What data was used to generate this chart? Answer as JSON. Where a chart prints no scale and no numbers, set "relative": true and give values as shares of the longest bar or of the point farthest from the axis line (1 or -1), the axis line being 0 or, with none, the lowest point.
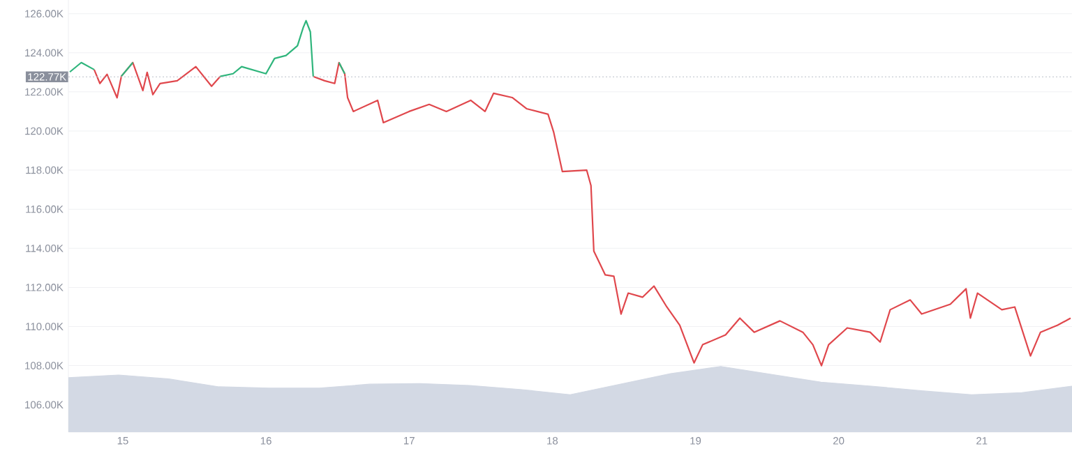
{
  "chart_data": [
    {
      "type": "line",
      "x": [
        14.63,
        14.71,
        14.8,
        14.84,
        14.89,
        14.96,
        14.99,
        15.07,
        15.14,
        15.17,
        15.21,
        15.26,
        15.38,
        15.51,
        15.62,
        15.68,
        15.77,
        15.83,
        16.0,
        16.06,
        16.14,
        16.22,
        16.26,
        16.28,
        16.31,
        16.33,
        16.41,
        16.48,
        16.51,
        16.55,
        16.57,
        16.61,
        16.78,
        16.82,
        17.0,
        17.14,
        17.26,
        17.43,
        17.53,
        17.59,
        17.72,
        17.82,
        17.97,
        18.01,
        18.07,
        18.24,
        18.27,
        18.29,
        18.37,
        18.43,
        18.48,
        18.53,
        18.63,
        18.71,
        18.8,
        18.89,
        18.99,
        19.05,
        19.21,
        19.31,
        19.41,
        19.59,
        19.75,
        19.82,
        19.88,
        19.93,
        20.06,
        20.22,
        20.29,
        20.36,
        20.5,
        20.58,
        20.78,
        20.89,
        20.92,
        20.97,
        21.14,
        21.23,
        21.34,
        21.41,
        21.53,
        21.62
      ],
      "series": [
        {
          "color": "#e0474c",
          "values": [
            null,
            null,
            123.14,
            122.43,
            122.9,
            121.7,
            122.8,
            123.5,
            122.07,
            123.0,
            121.86,
            122.43,
            122.57,
            123.29,
            122.29,
            122.79,
            null,
            null,
            null,
            null,
            null,
            null,
            null,
            null,
            null,
            122.79,
            122.57,
            122.43,
            123.5,
            122.93,
            121.71,
            121.0,
            121.57,
            120.43,
            121.0,
            121.36,
            121.0,
            121.57,
            121.0,
            121.93,
            121.71,
            121.14,
            120.86,
            119.93,
            117.93,
            118.0,
            117.21,
            113.86,
            112.64,
            112.57,
            110.64,
            111.71,
            111.5,
            112.07,
            111.0,
            110.07,
            108.14,
            109.07,
            109.57,
            110.43,
            109.71,
            110.29,
            109.71,
            109.07,
            108.0,
            109.07,
            109.93,
            109.71,
            109.21,
            110.86,
            111.36,
            110.64,
            111.14,
            111.93,
            110.43,
            111.71,
            110.86,
            111.0,
            108.5,
            109.71,
            110.07,
            110.43
          ]
        },
        {
          "color": "#2fb57c",
          "values": [
            123.02,
            123.5,
            123.14,
            null,
            null,
            null,
            122.8,
            123.5,
            null,
            null,
            null,
            null,
            null,
            null,
            null,
            122.79,
            122.93,
            123.29,
            122.93,
            123.71,
            123.86,
            124.36,
            125.29,
            125.64,
            125.07,
            122.79,
            null,
            null,
            123.5,
            122.93,
            null,
            null,
            null,
            null,
            null,
            null,
            null,
            null,
            null,
            null,
            null,
            null,
            null,
            null,
            null,
            null,
            null,
            null,
            null,
            null,
            null,
            null,
            null,
            null,
            null,
            null,
            null,
            null,
            null,
            null,
            null,
            null,
            null,
            null,
            null,
            null,
            null,
            null,
            null,
            null,
            null,
            null,
            null,
            null,
            null,
            null,
            null,
            null,
            null,
            null,
            null,
            null
          ]
        }
      ],
      "xlim": [
        14.62,
        21.63
      ],
      "ylim": [
        104.6,
        126.7
      ],
      "xticks": [
        15,
        16,
        17,
        18,
        19,
        20,
        21
      ],
      "yticks": [
        {
          "value": 106,
          "label": "106.00K"
        },
        {
          "value": 108,
          "label": "108.00K"
        },
        {
          "value": 110,
          "label": "110.00K"
        },
        {
          "value": 112,
          "label": "112.00K"
        },
        {
          "value": 114,
          "label": "114.00K"
        },
        {
          "value": 116,
          "label": "116.00K"
        },
        {
          "value": 118,
          "label": "118.00K"
        },
        {
          "value": 120,
          "label": "120.00K"
        },
        {
          "value": 122,
          "label": "122.00K"
        },
        {
          "value": 124,
          "label": "124.00K"
        },
        {
          "value": 126,
          "label": "126.00K"
        }
      ],
      "ref_lines": [
        {
          "axis": "y",
          "value": 122.77,
          "label": "122.77K",
          "color": "#b9bec8",
          "line_style": "dotted"
        }
      ],
      "grid": "y"
    },
    {
      "type": "area",
      "relative": true,
      "categories": [
        null,
        null,
        null,
        null,
        null,
        null,
        null,
        null,
        null,
        null,
        null,
        null,
        null,
        null,
        null,
        null,
        null,
        null,
        null,
        null,
        null
      ],
      "series": [
        {
          "color": "#d3d9e4",
          "values": [
            0.83,
            0.87,
            0.81,
            0.69,
            0.67,
            0.67,
            0.73,
            0.74,
            0.71,
            0.65,
            0.57,
            0.73,
            0.89,
            1,
            0.88,
            0.76,
            0.7,
            0.63,
            0.57,
            0.6,
            0.7
          ]
        }
      ]
    }
  ]
}
